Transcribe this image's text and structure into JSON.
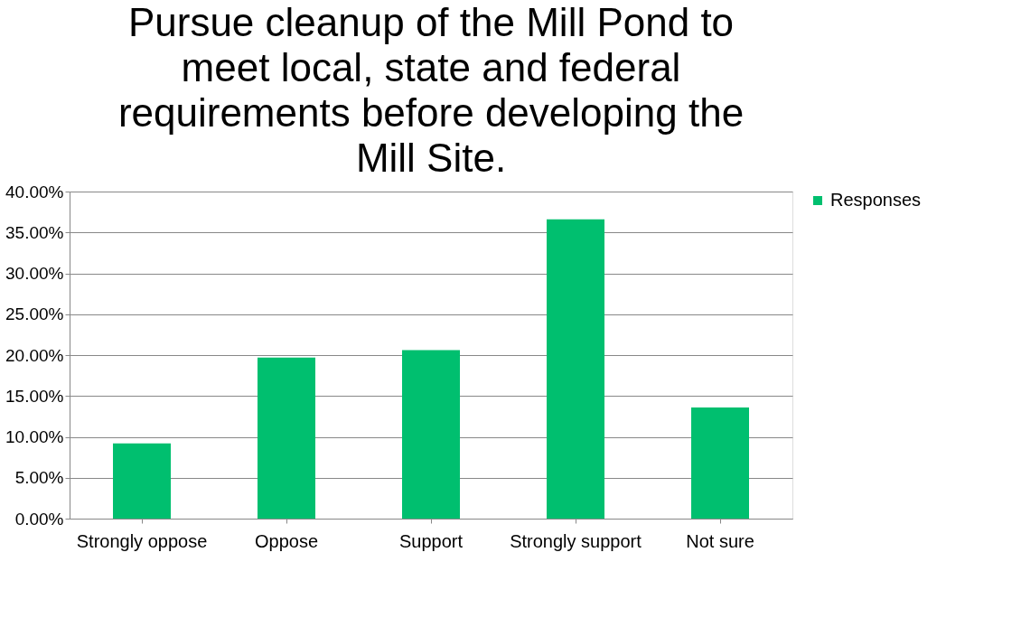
{
  "chart_data": {
    "type": "bar",
    "title": "Pursue cleanup of the Mill Pond to meet local, state and federal requirements before developing the Mill Site.",
    "categories": [
      "Strongly oppose",
      "Oppose",
      "Support",
      "Strongly support",
      "Not sure"
    ],
    "series": [
      {
        "name": "Responses",
        "color": "#00bf6f",
        "values": [
          9.2,
          19.7,
          20.6,
          36.6,
          13.6
        ]
      }
    ],
    "ylim": [
      0,
      40
    ],
    "yticks": [
      {
        "value": 0,
        "label": "0.00%"
      },
      {
        "value": 5,
        "label": "5.00%"
      },
      {
        "value": 10,
        "label": "10.00%"
      },
      {
        "value": 15,
        "label": "15.00%"
      },
      {
        "value": 20,
        "label": "20.00%"
      },
      {
        "value": 25,
        "label": "25.00%"
      },
      {
        "value": 30,
        "label": "30.00%"
      },
      {
        "value": 35,
        "label": "35.00%"
      },
      {
        "value": 40,
        "label": "40.00%"
      }
    ],
    "grid": "y",
    "legend": "right"
  }
}
